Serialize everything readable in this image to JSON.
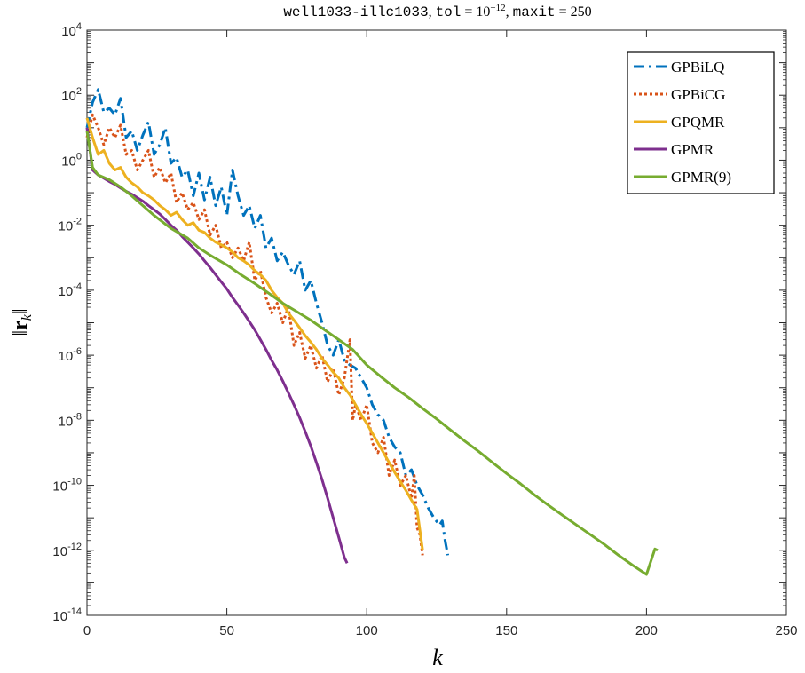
{
  "chart_data": {
    "type": "line",
    "title": {
      "matrix": "well1033-illc1033",
      "sep1": ", ",
      "tol_name": "tol",
      "tol_eq": " = 10",
      "tol_exp": "−12",
      "sep2": ", ",
      "maxit_name": "maxit",
      "maxit_eq": " = 250"
    },
    "xlabel": "k",
    "ylabel": "‖r_k‖",
    "ylabel_parts": {
      "open": "‖",
      "bold": "r",
      "sub": "k",
      "close": "‖"
    },
    "xlim": [
      0,
      250
    ],
    "ylim": [
      1e-14,
      10000.0
    ],
    "yscale": "log",
    "grid": false,
    "legend_position": "top-right",
    "xticks": [
      0,
      50,
      100,
      150,
      200,
      250
    ],
    "yticks": [
      {
        "value": 10000.0,
        "base": "10",
        "exp": "4"
      },
      {
        "value": 100.0,
        "base": "10",
        "exp": "2"
      },
      {
        "value": 1.0,
        "base": "10",
        "exp": "0"
      },
      {
        "value": 0.01,
        "base": "10",
        "exp": "-2"
      },
      {
        "value": 0.0001,
        "base": "10",
        "exp": "-4"
      },
      {
        "value": 1e-06,
        "base": "10",
        "exp": "-6"
      },
      {
        "value": 1e-08,
        "base": "10",
        "exp": "-8"
      },
      {
        "value": 1e-10,
        "base": "10",
        "exp": "-10"
      },
      {
        "value": 1e-12,
        "base": "10",
        "exp": "-12"
      },
      {
        "value": 1e-14,
        "base": "10",
        "exp": "-14"
      }
    ],
    "series": [
      {
        "name": "GPBiLQ",
        "color": "#0072BD",
        "dash": "dashdot",
        "points": [
          [
            0,
            10
          ],
          [
            2,
            60
          ],
          [
            4,
            150
          ],
          [
            6,
            30
          ],
          [
            8,
            40
          ],
          [
            10,
            25
          ],
          [
            12,
            80
          ],
          [
            14,
            5
          ],
          [
            16,
            8
          ],
          [
            18,
            2
          ],
          [
            20,
            6
          ],
          [
            22,
            15
          ],
          [
            24,
            1.5
          ],
          [
            26,
            3
          ],
          [
            28,
            10
          ],
          [
            30,
            0.8
          ],
          [
            32,
            1.2
          ],
          [
            34,
            0.3
          ],
          [
            36,
            0.5
          ],
          [
            38,
            0.08
          ],
          [
            40,
            0.4
          ],
          [
            42,
            0.06
          ],
          [
            44,
            0.3
          ],
          [
            46,
            0.04
          ],
          [
            48,
            0.15
          ],
          [
            50,
            0.02
          ],
          [
            52,
            0.5
          ],
          [
            54,
            0.08
          ],
          [
            56,
            0.02
          ],
          [
            58,
            0.04
          ],
          [
            60,
            0.008
          ],
          [
            62,
            0.02
          ],
          [
            64,
            0.002
          ],
          [
            66,
            0.004
          ],
          [
            68,
            0.0008
          ],
          [
            70,
            0.0015
          ],
          [
            72,
            0.0006
          ],
          [
            74,
            0.0003
          ],
          [
            76,
            0.0008
          ],
          [
            78,
            0.0001
          ],
          [
            80,
            0.0002
          ],
          [
            82,
            4e-05
          ],
          [
            84,
            1e-05
          ],
          [
            86,
            2e-06
          ],
          [
            88,
            1e-06
          ],
          [
            90,
            3e-06
          ],
          [
            92,
            7e-07
          ],
          [
            94,
            5e-07
          ],
          [
            96,
            4e-07
          ],
          [
            98,
            2e-07
          ],
          [
            100,
            1e-07
          ],
          [
            102,
            3e-08
          ],
          [
            104,
            1.5e-08
          ],
          [
            106,
            1e-08
          ],
          [
            108,
            3e-09
          ],
          [
            110,
            1.5e-09
          ],
          [
            112,
            1e-09
          ],
          [
            114,
            2e-10
          ],
          [
            116,
            3e-10
          ],
          [
            118,
            1e-10
          ],
          [
            120,
            5e-11
          ],
          [
            122,
            2e-11
          ],
          [
            124,
            1e-11
          ],
          [
            126,
            6e-12
          ],
          [
            127,
            8e-12
          ],
          [
            128,
            2e-12
          ],
          [
            129,
            7e-13
          ]
        ]
      },
      {
        "name": "GPBiCG",
        "color": "#D95319",
        "dash": "dotted",
        "points": [
          [
            0,
            5
          ],
          [
            2,
            25
          ],
          [
            4,
            10
          ],
          [
            6,
            3
          ],
          [
            8,
            10
          ],
          [
            10,
            5
          ],
          [
            12,
            12
          ],
          [
            14,
            1.5
          ],
          [
            16,
            2
          ],
          [
            18,
            0.5
          ],
          [
            20,
            1
          ],
          [
            22,
            2
          ],
          [
            24,
            0.3
          ],
          [
            26,
            0.6
          ],
          [
            28,
            0.2
          ],
          [
            30,
            0.4
          ],
          [
            32,
            0.05
          ],
          [
            34,
            0.1
          ],
          [
            36,
            0.03
          ],
          [
            38,
            0.05
          ],
          [
            40,
            0.015
          ],
          [
            42,
            0.03
          ],
          [
            44,
            0.005
          ],
          [
            46,
            0.01
          ],
          [
            48,
            0.002
          ],
          [
            50,
            0.003
          ],
          [
            52,
            0.001
          ],
          [
            54,
            0.002
          ],
          [
            56,
            0.0008
          ],
          [
            58,
            0.003
          ],
          [
            60,
            0.0002
          ],
          [
            62,
            0.0004
          ],
          [
            64,
            6e-05
          ],
          [
            66,
            2e-05
          ],
          [
            68,
            4e-05
          ],
          [
            70,
            1e-05
          ],
          [
            72,
            3e-05
          ],
          [
            74,
            2e-06
          ],
          [
            76,
            5e-06
          ],
          [
            78,
            8e-07
          ],
          [
            80,
            2e-06
          ],
          [
            82,
            4e-07
          ],
          [
            84,
            1e-06
          ],
          [
            86,
            1.5e-07
          ],
          [
            88,
            4e-07
          ],
          [
            90,
            6e-08
          ],
          [
            92,
            2e-07
          ],
          [
            94,
            3e-06
          ],
          [
            95,
            1e-08
          ],
          [
            96,
            3e-08
          ],
          [
            98,
            1e-08
          ],
          [
            100,
            3e-08
          ],
          [
            102,
            2e-09
          ],
          [
            104,
            1e-09
          ],
          [
            106,
            3e-09
          ],
          [
            108,
            2e-10
          ],
          [
            110,
            6e-10
          ],
          [
            112,
            1e-10
          ],
          [
            114,
            2e-10
          ],
          [
            116,
            4e-11
          ],
          [
            117,
            2e-10
          ],
          [
            118,
            5e-12
          ],
          [
            119,
            3e-12
          ],
          [
            120,
            7e-13
          ]
        ]
      },
      {
        "name": "GPQMR",
        "color": "#EDB120",
        "dash": "solid",
        "points": [
          [
            0,
            20
          ],
          [
            2,
            5
          ],
          [
            4,
            1.5
          ],
          [
            6,
            2
          ],
          [
            8,
            0.8
          ],
          [
            10,
            0.5
          ],
          [
            12,
            0.6
          ],
          [
            14,
            0.3
          ],
          [
            16,
            0.2
          ],
          [
            18,
            0.15
          ],
          [
            20,
            0.1
          ],
          [
            22,
            0.08
          ],
          [
            24,
            0.06
          ],
          [
            26,
            0.04
          ],
          [
            28,
            0.03
          ],
          [
            30,
            0.02
          ],
          [
            32,
            0.025
          ],
          [
            34,
            0.015
          ],
          [
            36,
            0.01
          ],
          [
            38,
            0.012
          ],
          [
            40,
            0.007
          ],
          [
            42,
            0.006
          ],
          [
            44,
            0.004
          ],
          [
            46,
            0.003
          ],
          [
            48,
            0.0025
          ],
          [
            50,
            0.002
          ],
          [
            52,
            0.0015
          ],
          [
            54,
            0.001
          ],
          [
            56,
            0.0008
          ],
          [
            58,
            0.0006
          ],
          [
            60,
            0.0004
          ],
          [
            62,
            0.0003
          ],
          [
            64,
            0.0002
          ],
          [
            66,
            0.0001
          ],
          [
            68,
            6e-05
          ],
          [
            70,
            4e-05
          ],
          [
            72,
            2e-05
          ],
          [
            74,
            1.2e-05
          ],
          [
            76,
            7e-06
          ],
          [
            78,
            4e-06
          ],
          [
            80,
            2.5e-06
          ],
          [
            82,
            1.5e-06
          ],
          [
            84,
            8e-07
          ],
          [
            86,
            5e-07
          ],
          [
            88,
            3e-07
          ],
          [
            90,
            2e-07
          ],
          [
            92,
            1e-07
          ],
          [
            94,
            6e-08
          ],
          [
            96,
            3e-08
          ],
          [
            98,
            1.5e-08
          ],
          [
            100,
            8e-09
          ],
          [
            102,
            4e-09
          ],
          [
            104,
            2e-09
          ],
          [
            106,
            1e-09
          ],
          [
            108,
            5e-10
          ],
          [
            110,
            2.5e-10
          ],
          [
            112,
            1.3e-10
          ],
          [
            114,
            7e-11
          ],
          [
            116,
            3.5e-11
          ],
          [
            118,
            1.8e-11
          ],
          [
            120,
            1e-12
          ]
        ]
      },
      {
        "name": "GPMR",
        "color": "#7E2F8E",
        "dash": "solid",
        "points": [
          [
            0,
            10
          ],
          [
            2,
            0.5
          ],
          [
            4,
            0.35
          ],
          [
            6,
            0.28
          ],
          [
            8,
            0.22
          ],
          [
            10,
            0.18
          ],
          [
            12,
            0.14
          ],
          [
            14,
            0.11
          ],
          [
            16,
            0.09
          ],
          [
            18,
            0.07
          ],
          [
            20,
            0.055
          ],
          [
            22,
            0.04
          ],
          [
            24,
            0.03
          ],
          [
            26,
            0.022
          ],
          [
            28,
            0.015
          ],
          [
            30,
            0.01
          ],
          [
            32,
            0.007
          ],
          [
            34,
            0.0045
          ],
          [
            36,
            0.003
          ],
          [
            38,
            0.002
          ],
          [
            40,
            0.0013
          ],
          [
            42,
            0.0008
          ],
          [
            44,
            0.0005
          ],
          [
            46,
            0.0003
          ],
          [
            48,
            0.00018
          ],
          [
            50,
            0.00011
          ],
          [
            52,
            6e-05
          ],
          [
            54,
            3.5e-05
          ],
          [
            56,
            2e-05
          ],
          [
            58,
            1.1e-05
          ],
          [
            60,
            6e-06
          ],
          [
            62,
            3e-06
          ],
          [
            64,
            1.5e-06
          ],
          [
            66,
            7e-07
          ],
          [
            68,
            3.5e-07
          ],
          [
            70,
            1.6e-07
          ],
          [
            72,
            7e-08
          ],
          [
            74,
            3e-08
          ],
          [
            76,
            1.2e-08
          ],
          [
            78,
            4.5e-09
          ],
          [
            80,
            1.6e-09
          ],
          [
            82,
            5e-10
          ],
          [
            84,
            1.5e-10
          ],
          [
            86,
            4e-11
          ],
          [
            88,
            1e-11
          ],
          [
            90,
            2.5e-12
          ],
          [
            92,
            6e-13
          ],
          [
            93,
            4e-13
          ]
        ]
      },
      {
        "name": "GPMR(9)",
        "color": "#77AC30",
        "dash": "solid",
        "points": [
          [
            0,
            8
          ],
          [
            2,
            0.6
          ],
          [
            4,
            0.35
          ],
          [
            8,
            0.25
          ],
          [
            12,
            0.15
          ],
          [
            16,
            0.08
          ],
          [
            20,
            0.04
          ],
          [
            24,
            0.02
          ],
          [
            30,
            0.008
          ],
          [
            36,
            0.004
          ],
          [
            40,
            0.002
          ],
          [
            44,
            0.0012
          ],
          [
            50,
            0.0006
          ],
          [
            55,
            0.0003
          ],
          [
            60,
            0.00016
          ],
          [
            65,
            8e-05
          ],
          [
            70,
            4e-05
          ],
          [
            75,
            2.2e-05
          ],
          [
            80,
            1.2e-05
          ],
          [
            85,
            6e-06
          ],
          [
            90,
            3e-06
          ],
          [
            95,
            1.5e-06
          ],
          [
            100,
            5e-07
          ],
          [
            105,
            2.2e-07
          ],
          [
            110,
            1e-07
          ],
          [
            115,
            5e-08
          ],
          [
            120,
            2.3e-08
          ],
          [
            125,
            1.1e-08
          ],
          [
            130,
            5e-09
          ],
          [
            135,
            2.3e-09
          ],
          [
            140,
            1.1e-09
          ],
          [
            145,
            5e-10
          ],
          [
            150,
            2.3e-10
          ],
          [
            155,
            1.1e-10
          ],
          [
            160,
            5e-11
          ],
          [
            165,
            2.4e-11
          ],
          [
            170,
            1.2e-11
          ],
          [
            175,
            6e-12
          ],
          [
            180,
            3e-12
          ],
          [
            185,
            1.5e-12
          ],
          [
            190,
            7e-13
          ],
          [
            195,
            3.5e-13
          ],
          [
            200,
            1.8e-13
          ],
          [
            203,
            1.1e-12
          ],
          [
            204,
            1e-12
          ]
        ]
      }
    ]
  }
}
